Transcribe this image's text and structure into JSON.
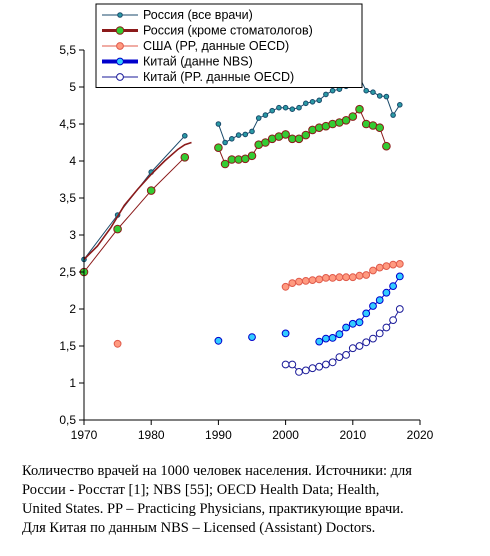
{
  "chart_data": {
    "type": "line",
    "xlim": [
      1970,
      2020
    ],
    "ylim": [
      0.5,
      5.5
    ],
    "x_ticks": [
      1970,
      1980,
      1990,
      2000,
      2010,
      2020
    ],
    "y_ticks": [
      "0,5",
      "1",
      "1,5",
      "2",
      "2,5",
      "3",
      "3,5",
      "4",
      "4,5",
      "5",
      "5,5"
    ],
    "y_tick_values": [
      0.5,
      1,
      1.5,
      2,
      2.5,
      3,
      3.5,
      4,
      4.5,
      5,
      5.5
    ],
    "legend_position": "top-center",
    "series": [
      {
        "name": "Россия (все врачи)",
        "line_color": "#1a4a6b",
        "marker_fill": "#2a9aa5",
        "marker_size": "small",
        "line": true,
        "segments": [
          [
            [
              1970,
              2.67
            ],
            [
              1975,
              3.27
            ],
            [
              1980,
              3.85
            ],
            [
              1985,
              4.34
            ]
          ],
          [
            [
              1990,
              4.5
            ],
            [
              1991,
              4.25
            ],
            [
              1992,
              4.3
            ],
            [
              1993,
              4.35
            ],
            [
              1994,
              4.36
            ],
            [
              1995,
              4.4
            ],
            [
              1996,
              4.58
            ],
            [
              1997,
              4.62
            ],
            [
              1998,
              4.68
            ],
            [
              1999,
              4.72
            ],
            [
              2000,
              4.72
            ],
            [
              2001,
              4.7
            ],
            [
              2002,
              4.72
            ],
            [
              2003,
              4.78
            ],
            [
              2004,
              4.8
            ],
            [
              2005,
              4.82
            ],
            [
              2006,
              4.9
            ],
            [
              2007,
              4.95
            ],
            [
              2008,
              4.97
            ],
            [
              2009,
              5.01
            ],
            [
              2010,
              5.03
            ],
            [
              2011,
              5.13
            ],
            [
              2012,
              4.95
            ],
            [
              2013,
              4.93
            ],
            [
              2014,
              4.88
            ],
            [
              2015,
              4.87
            ],
            [
              2016,
              4.62
            ],
            [
              2017,
              4.76
            ]
          ]
        ]
      },
      {
        "name": "Россия (кроме стоматологов)",
        "line_color": "#8b1a1a",
        "marker_fill": "#33cc33",
        "marker_size": "large",
        "line": true,
        "segments": [
          [
            [
              1970,
              2.5
            ],
            [
              1975,
              3.08
            ],
            [
              1980,
              3.6
            ],
            [
              1985,
              4.05
            ]
          ],
          [
            [
              1990,
              4.18
            ],
            [
              1991,
              3.96
            ],
            [
              1992,
              4.02
            ],
            [
              1993,
              4.02
            ],
            [
              1994,
              4.03
            ],
            [
              1995,
              4.07
            ],
            [
              1996,
              4.22
            ],
            [
              1997,
              4.25
            ],
            [
              1998,
              4.3
            ],
            [
              1999,
              4.33
            ],
            [
              2000,
              4.36
            ],
            [
              2001,
              4.3
            ],
            [
              2002,
              4.3
            ],
            [
              2003,
              4.35
            ],
            [
              2004,
              4.42
            ],
            [
              2005,
              4.45
            ],
            [
              2006,
              4.47
            ],
            [
              2007,
              4.5
            ],
            [
              2008,
              4.52
            ],
            [
              2009,
              4.55
            ],
            [
              2010,
              4.6
            ],
            [
              2011,
              4.7
            ],
            [
              2012,
              4.5
            ],
            [
              2013,
              4.48
            ],
            [
              2014,
              4.45
            ],
            [
              2015,
              4.2
            ]
          ]
        ],
        "curve": [
          [
            1970,
            2.67
          ],
          [
            1972,
            2.85
          ],
          [
            1974,
            3.1
          ],
          [
            1976,
            3.4
          ],
          [
            1978,
            3.62
          ],
          [
            1980,
            3.82
          ],
          [
            1982,
            4.0
          ],
          [
            1984,
            4.16
          ],
          [
            1985,
            4.22
          ],
          [
            1986,
            4.25
          ]
        ]
      },
      {
        "name": "США (PP, данные OECD)",
        "line_color": "#e05a4a",
        "marker_fill": "#ff9a80",
        "marker_size": "medium",
        "line": true,
        "segments": [
          [
            [
              1975,
              1.53
            ]
          ],
          [
            [
              2000,
              2.3
            ],
            [
              2001,
              2.35
            ],
            [
              2002,
              2.37
            ],
            [
              2003,
              2.38
            ],
            [
              2004,
              2.39
            ],
            [
              2005,
              2.4
            ],
            [
              2006,
              2.42
            ],
            [
              2007,
              2.42
            ],
            [
              2008,
              2.43
            ],
            [
              2009,
              2.43
            ],
            [
              2010,
              2.43
            ],
            [
              2011,
              2.45
            ],
            [
              2012,
              2.46
            ],
            [
              2013,
              2.52
            ],
            [
              2014,
              2.56
            ],
            [
              2015,
              2.58
            ],
            [
              2016,
              2.6
            ],
            [
              2017,
              2.61
            ]
          ]
        ]
      },
      {
        "name": "Китай (данне NBS)",
        "line_color": "#0000cc",
        "marker_fill": "#33ccff",
        "marker_size": "medium",
        "line": true,
        "segments": [
          [
            [
              1990,
              1.57
            ]
          ],
          [
            [
              1995,
              1.62
            ]
          ],
          [
            [
              2000,
              1.67
            ]
          ],
          [
            [
              2005,
              1.56
            ],
            [
              2006,
              1.6
            ],
            [
              2007,
              1.61
            ],
            [
              2008,
              1.66
            ],
            [
              2009,
              1.75
            ],
            [
              2010,
              1.8
            ],
            [
              2011,
              1.82
            ],
            [
              2012,
              1.94
            ],
            [
              2013,
              2.04
            ],
            [
              2014,
              2.12
            ],
            [
              2015,
              2.22
            ],
            [
              2016,
              2.31
            ],
            [
              2017,
              2.44
            ]
          ]
        ]
      },
      {
        "name": "Китай (PP. данные OECD)",
        "line_color": "#1a1a99",
        "marker_fill": "#ffffff",
        "marker_size": "medium",
        "line": true,
        "segments": [
          [
            [
              2000,
              1.25
            ],
            [
              2001,
              1.25
            ],
            [
              2002,
              1.15
            ],
            [
              2003,
              1.17
            ],
            [
              2004,
              1.2
            ],
            [
              2005,
              1.22
            ],
            [
              2006,
              1.25
            ],
            [
              2007,
              1.28
            ],
            [
              2008,
              1.35
            ],
            [
              2009,
              1.38
            ],
            [
              2010,
              1.47
            ],
            [
              2011,
              1.5
            ],
            [
              2012,
              1.55
            ],
            [
              2013,
              1.6
            ],
            [
              2014,
              1.67
            ],
            [
              2015,
              1.75
            ],
            [
              2016,
              1.85
            ],
            [
              2017,
              2.0
            ]
          ]
        ]
      }
    ]
  },
  "caption": {
    "lines": [
      "Количество врачей на 1000 человек населения. Источники: для",
      "России - Росстат [1]; NBS [55]; OECD Health Data; Health,",
      "United States. PP – Practicing Physicians, практикующие врачи.",
      "Для Китая по данным NBS – Licensed (Assistant) Doctors."
    ]
  }
}
